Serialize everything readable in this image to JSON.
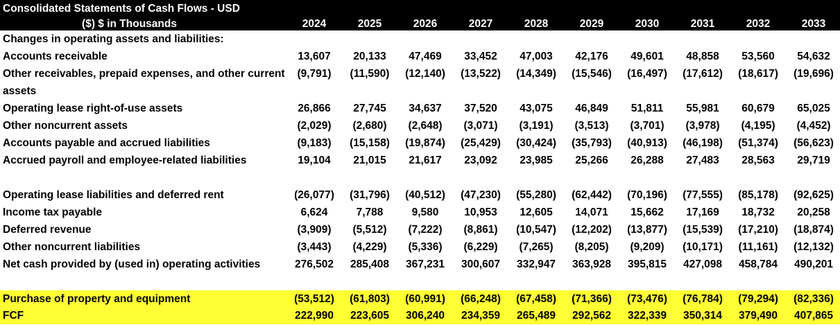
{
  "header": {
    "title_line1": "Consolidated Statements of Cash Flows - USD",
    "title_line2": "($) $ in Thousands",
    "years": [
      "2024",
      "2025",
      "2026",
      "2027",
      "2028",
      "2029",
      "2030",
      "2031",
      "2032",
      "2033"
    ]
  },
  "section_title": "Changes in operating assets and liabilities:",
  "rows": [
    {
      "label": "Accounts receivable",
      "values": [
        "13,607",
        "20,133",
        "47,469",
        "33,452",
        "47,003",
        "42,176",
        "49,601",
        "48,858",
        "53,560",
        "54,632"
      ]
    },
    {
      "label": "Other receivables, prepaid expenses, and other current assets",
      "values": [
        "(9,791)",
        "(11,590)",
        "(12,140)",
        "(13,522)",
        "(14,349)",
        "(15,546)",
        "(16,497)",
        "(17,612)",
        "(18,617)",
        "(19,696)"
      ]
    },
    {
      "label": "Operating lease right-of-use assets",
      "values": [
        "26,866",
        "27,745",
        "34,637",
        "37,520",
        "43,075",
        "46,849",
        "51,811",
        "55,981",
        "60,679",
        "65,025"
      ]
    },
    {
      "label": "Other noncurrent assets",
      "values": [
        "(2,029)",
        "(2,680)",
        "(2,648)",
        "(3,071)",
        "(3,191)",
        "(3,513)",
        "(3,701)",
        "(3,978)",
        "(4,195)",
        "(4,452)"
      ]
    },
    {
      "label": "Accounts payable and accrued liabilities",
      "values": [
        "(9,183)",
        "(15,158)",
        "(19,874)",
        "(25,429)",
        "(30,424)",
        "(35,793)",
        "(40,913)",
        "(46,198)",
        "(51,374)",
        "(56,623)"
      ]
    },
    {
      "label": "Accrued payroll and employee-related liabilities",
      "values": [
        "19,104",
        "21,015",
        "21,617",
        "23,092",
        "23,985",
        "25,266",
        "26,288",
        "27,483",
        "28,563",
        "29,719"
      ]
    },
    {
      "label": "Operating lease liabilities and deferred rent",
      "values": [
        "(26,077)",
        "(31,796)",
        "(40,512)",
        "(47,230)",
        "(55,280)",
        "(62,442)",
        "(70,196)",
        "(77,555)",
        "(85,178)",
        "(92,625)"
      ]
    },
    {
      "label": "Income tax payable",
      "values": [
        "6,624",
        "7,788",
        "9,580",
        "10,953",
        "12,605",
        "14,071",
        "15,662",
        "17,169",
        "18,732",
        "20,258"
      ]
    },
    {
      "label": "Deferred revenue",
      "values": [
        "(3,909)",
        "(5,512)",
        "(7,222)",
        "(8,861)",
        "(10,547)",
        "(12,202)",
        "(13,877)",
        "(15,539)",
        "(17,210)",
        "(18,874)"
      ]
    },
    {
      "label": "Other noncurrent liabilities",
      "values": [
        "(3,443)",
        "(4,229)",
        "(5,336)",
        "(6,229)",
        "(7,265)",
        "(8,205)",
        "(9,209)",
        "(10,171)",
        "(11,161)",
        "(12,132)"
      ]
    },
    {
      "label": "Net cash provided by (used in) operating activities",
      "values": [
        "276,502",
        "285,408",
        "367,231",
        "300,607",
        "332,947",
        "363,928",
        "395,815",
        "427,098",
        "458,784",
        "490,201"
      ]
    },
    {
      "label": "Purchase of property and equipment",
      "values": [
        "(53,512)",
        "(61,803)",
        "(60,991)",
        "(66,248)",
        "(67,458)",
        "(71,366)",
        "(73,476)",
        "(76,784)",
        "(79,294)",
        "(82,336)"
      ]
    },
    {
      "label": "FCF",
      "values": [
        "222,990",
        "223,605",
        "306,240",
        "234,359",
        "265,489",
        "292,562",
        "322,339",
        "350,314",
        "379,490",
        "407,865"
      ]
    }
  ],
  "colors": {
    "header_bg": "#000000",
    "header_text": "#ffffff",
    "highlight": "#ffff33"
  }
}
